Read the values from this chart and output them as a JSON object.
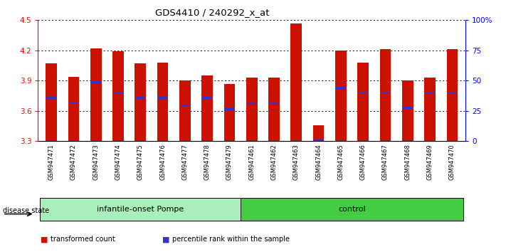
{
  "title": "GDS4410 / 240292_x_at",
  "samples": [
    "GSM947471",
    "GSM947472",
    "GSM947473",
    "GSM947474",
    "GSM947475",
    "GSM947476",
    "GSM947477",
    "GSM947478",
    "GSM947479",
    "GSM947461",
    "GSM947462",
    "GSM947463",
    "GSM947464",
    "GSM947465",
    "GSM947466",
    "GSM947467",
    "GSM947468",
    "GSM947469",
    "GSM947470"
  ],
  "bar_values": [
    4.07,
    3.94,
    4.22,
    4.19,
    4.07,
    4.08,
    3.9,
    3.95,
    3.87,
    3.93,
    3.93,
    4.47,
    3.46,
    4.2,
    4.08,
    4.21,
    3.9,
    3.93,
    4.21
  ],
  "blue_marker_values": [
    3.73,
    3.68,
    3.88,
    3.78,
    3.73,
    3.73,
    3.65,
    3.73,
    3.62,
    3.68,
    3.68,
    3.28,
    3.3,
    3.83,
    3.78,
    3.78,
    3.63,
    3.78,
    3.78
  ],
  "groups": [
    {
      "label": "infantile-onset Pompe",
      "start": 0,
      "end": 9
    },
    {
      "label": "control",
      "start": 9,
      "end": 19
    }
  ],
  "bar_color": "#CC1100",
  "blue_color": "#3333CC",
  "base_value": 3.3,
  "ylim": [
    3.3,
    4.5
  ],
  "y_ticks": [
    3.3,
    3.6,
    3.9,
    4.2,
    4.5
  ],
  "right_ytick_labels": [
    "0",
    "25",
    "50",
    "75",
    "100%"
  ],
  "bar_width": 0.5,
  "group_color_light": "#aaeebb",
  "group_color_dark": "#44cc44",
  "disease_state_label": "disease state",
  "legend_items": [
    {
      "label": "transformed count",
      "color": "#CC1100"
    },
    {
      "label": "percentile rank within the sample",
      "color": "#3333CC"
    }
  ]
}
